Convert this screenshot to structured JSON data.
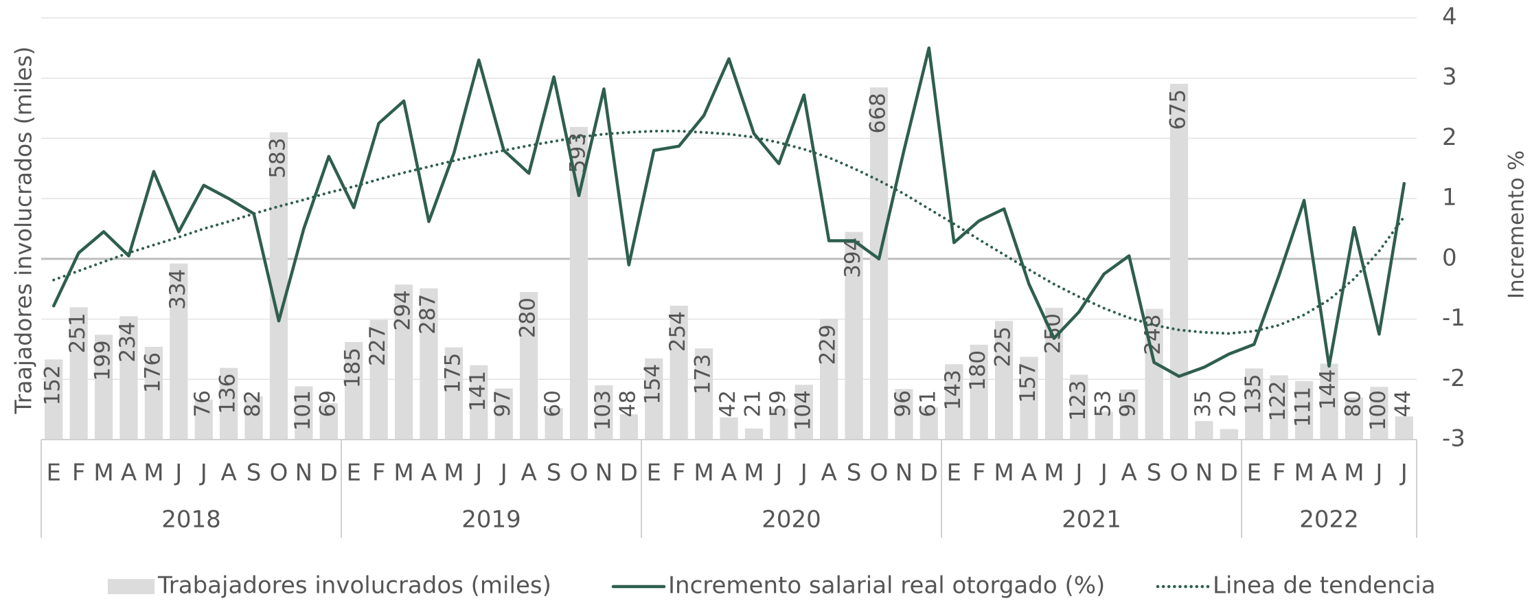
{
  "chart_data": {
    "type": "combo",
    "y_label": "Traajadores involucrados (miles)",
    "y2_label": "Incremento %",
    "category_groups": [
      {
        "label": "2018",
        "categories": [
          "E",
          "F",
          "M",
          "A",
          "M",
          "J",
          "J",
          "A",
          "S",
          "O",
          "N",
          "D"
        ]
      },
      {
        "label": "2019",
        "categories": [
          "E",
          "F",
          "M",
          "A",
          "M",
          "J",
          "J",
          "A",
          "S",
          "O",
          "N",
          "D"
        ]
      },
      {
        "label": "2020",
        "categories": [
          "E",
          "F",
          "M",
          "A",
          "M",
          "J",
          "J",
          "A",
          "S",
          "O",
          "N",
          "D"
        ]
      },
      {
        "label": "2021",
        "categories": [
          "E",
          "F",
          "M",
          "A",
          "M",
          "J",
          "J",
          "A",
          "S",
          "O",
          "N",
          "D"
        ]
      },
      {
        "label": "2022",
        "categories": [
          "E",
          "F",
          "M",
          "A",
          "M",
          "J",
          "J"
        ]
      }
    ],
    "ylim": [
      0,
      800
    ],
    "y2lim": [
      -3,
      4
    ],
    "y2ticks": [
      -3,
      -2,
      -1,
      0,
      1,
      2,
      3,
      4
    ],
    "grid": true,
    "legend": "bottom",
    "series": [
      {
        "name": "Trabajadores involucrados (miles)",
        "type": "bar",
        "color": "#dcdcdc",
        "values": [
          152,
          251,
          199,
          234,
          176,
          334,
          76,
          136,
          82,
          583,
          101,
          69,
          185,
          227,
          294,
          287,
          175,
          141,
          97,
          280,
          60,
          593,
          103,
          48,
          154,
          254,
          173,
          42,
          21,
          59,
          104,
          229,
          394,
          668,
          96,
          61,
          143,
          180,
          225,
          157,
          250,
          123,
          53,
          95,
          248,
          675,
          35,
          20,
          135,
          122,
          111,
          144,
          80,
          100,
          44
        ]
      },
      {
        "name": "Incremento salarial real otorgado (%)",
        "type": "line",
        "axis": "y2",
        "color": "#2e5e4e",
        "style": "solid",
        "values": [
          -0.78,
          0.1,
          0.45,
          0.05,
          1.45,
          0.45,
          1.22,
          1.0,
          0.75,
          -1.03,
          0.5,
          1.7,
          0.85,
          2.25,
          2.62,
          0.62,
          1.75,
          3.3,
          1.8,
          1.42,
          3.02,
          1.05,
          2.82,
          -0.1,
          1.8,
          1.87,
          2.38,
          3.32,
          2.08,
          1.58,
          2.72,
          0.3,
          0.3,
          0.0,
          1.8,
          3.5,
          0.27,
          0.63,
          0.83,
          -0.42,
          -1.32,
          -0.88,
          -0.25,
          0.05,
          -1.72,
          -1.95,
          -1.8,
          -1.58,
          -1.42,
          -0.27,
          0.97,
          -1.78,
          0.52,
          -1.25,
          1.25
        ]
      },
      {
        "name": "Linea de tendencia",
        "type": "line",
        "axis": "y2",
        "color": "#2e5e4e",
        "style": "dotted",
        "values": [
          -0.35,
          -0.2,
          -0.05,
          0.1,
          0.23,
          0.36,
          0.5,
          0.62,
          0.75,
          0.87,
          0.98,
          1.1,
          1.2,
          1.32,
          1.43,
          1.53,
          1.63,
          1.72,
          1.8,
          1.88,
          1.95,
          2.02,
          2.07,
          2.1,
          2.12,
          2.12,
          2.1,
          2.07,
          2.02,
          1.93,
          1.82,
          1.68,
          1.5,
          1.3,
          1.08,
          0.83,
          0.58,
          0.32,
          0.07,
          -0.18,
          -0.42,
          -0.63,
          -0.82,
          -0.98,
          -1.1,
          -1.18,
          -1.22,
          -1.24,
          -1.2,
          -1.1,
          -0.93,
          -0.68,
          -0.33,
          0.13,
          0.7
        ]
      }
    ]
  }
}
